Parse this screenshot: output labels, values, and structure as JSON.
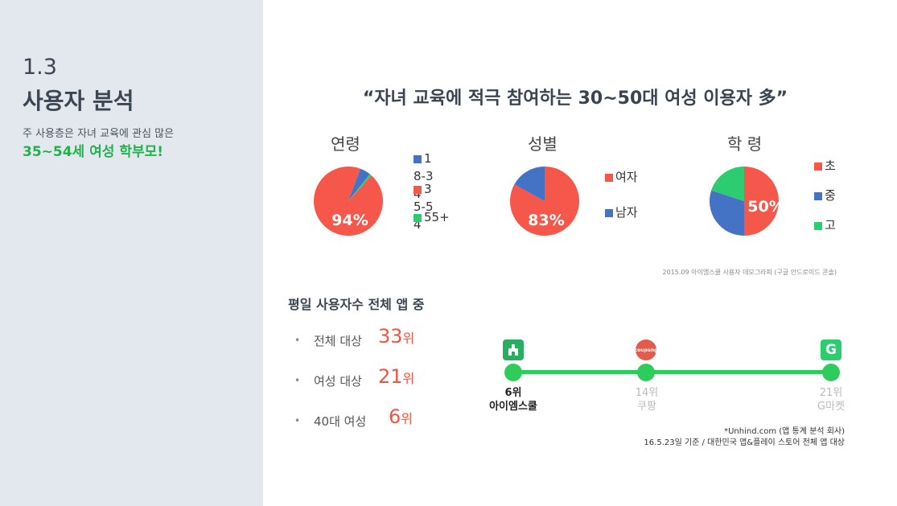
{
  "sidebar": {
    "section_number": "1.3",
    "section_title": "사용자 분석",
    "description": "주 사용층은 자녀 교육에 관심 많은",
    "highlight": "35~54세 여성 학부모!",
    "highlight_color": "#20b24b"
  },
  "headline": "“자녀 교육에 적극 참여하는 30~50대 여성 이용자 多”",
  "chart_data": [
    {
      "type": "pie",
      "title": "연령",
      "data_label": "94%",
      "slices": [
        {
          "name": "35-54",
          "value": 94,
          "color": "#f5574a"
        },
        {
          "name": "18-34",
          "value": 5,
          "color": "#4472c4"
        },
        {
          "name": "55+",
          "value": 1,
          "color": "#2ecc71"
        }
      ],
      "legend": [
        {
          "label": "18-34",
          "color": "#4472c4"
        },
        {
          "label": "35-54",
          "color": "#f5574a"
        },
        {
          "label": "55+",
          "color": "#2ecc71"
        }
      ]
    },
    {
      "type": "pie",
      "title": "성별",
      "data_label": "83%",
      "slices": [
        {
          "name": "여자",
          "value": 83,
          "color": "#f5574a"
        },
        {
          "name": "남자",
          "value": 17,
          "color": "#4472c4"
        }
      ],
      "legend": [
        {
          "label": "여자",
          "color": "#f5574a"
        },
        {
          "label": "남자",
          "color": "#4472c4"
        }
      ]
    },
    {
      "type": "pie",
      "title": "학 령",
      "data_label": "50%",
      "slices": [
        {
          "name": "초",
          "value": 50,
          "color": "#f5574a"
        },
        {
          "name": "중",
          "value": 30,
          "color": "#4472c4"
        },
        {
          "name": "고",
          "value": 20,
          "color": "#2ecc71"
        }
      ],
      "legend": [
        {
          "label": "초",
          "color": "#f5574a"
        },
        {
          "label": "중",
          "color": "#4472c4"
        },
        {
          "label": "고",
          "color": "#2ecc71"
        }
      ]
    }
  ],
  "source_demographics": "2015.09 아이엠스쿨 사용자 데모그라피 (구글 안드로이드 콘솔)",
  "ranking": {
    "title": "평일 사용자수 전체 앱 중",
    "bullet": "•",
    "rows": [
      {
        "label": "전체 대상",
        "value": "33",
        "unit": "위"
      },
      {
        "label": "여성 대상",
        "value": "21",
        "unit": "위"
      },
      {
        "label": "40대 여성",
        "value": "6",
        "unit": "위"
      }
    ]
  },
  "timeline": {
    "line_color": "#2ecc5a",
    "points": [
      {
        "rank": "6위",
        "name": "아이엠스쿨",
        "icon": "iamschool-app-icon",
        "color": "#27ae60"
      },
      {
        "rank": "14위",
        "name": "쿠팡",
        "icon": "coupang-app-icon",
        "color": "#e74c3c"
      },
      {
        "rank": "21위",
        "name": "G마켓",
        "icon": "gmarket-app-icon",
        "color": "#2ecc71"
      }
    ],
    "coupang_icon_text": "coupang",
    "gmarket_icon_text": "G"
  },
  "source_ranking": {
    "line1": "*Unhind.com (앱 통계 분석 회사)",
    "line2": "16.5.23일 기준 / 대한민국 앱&플레이 스토어 전체 앱 대상"
  }
}
